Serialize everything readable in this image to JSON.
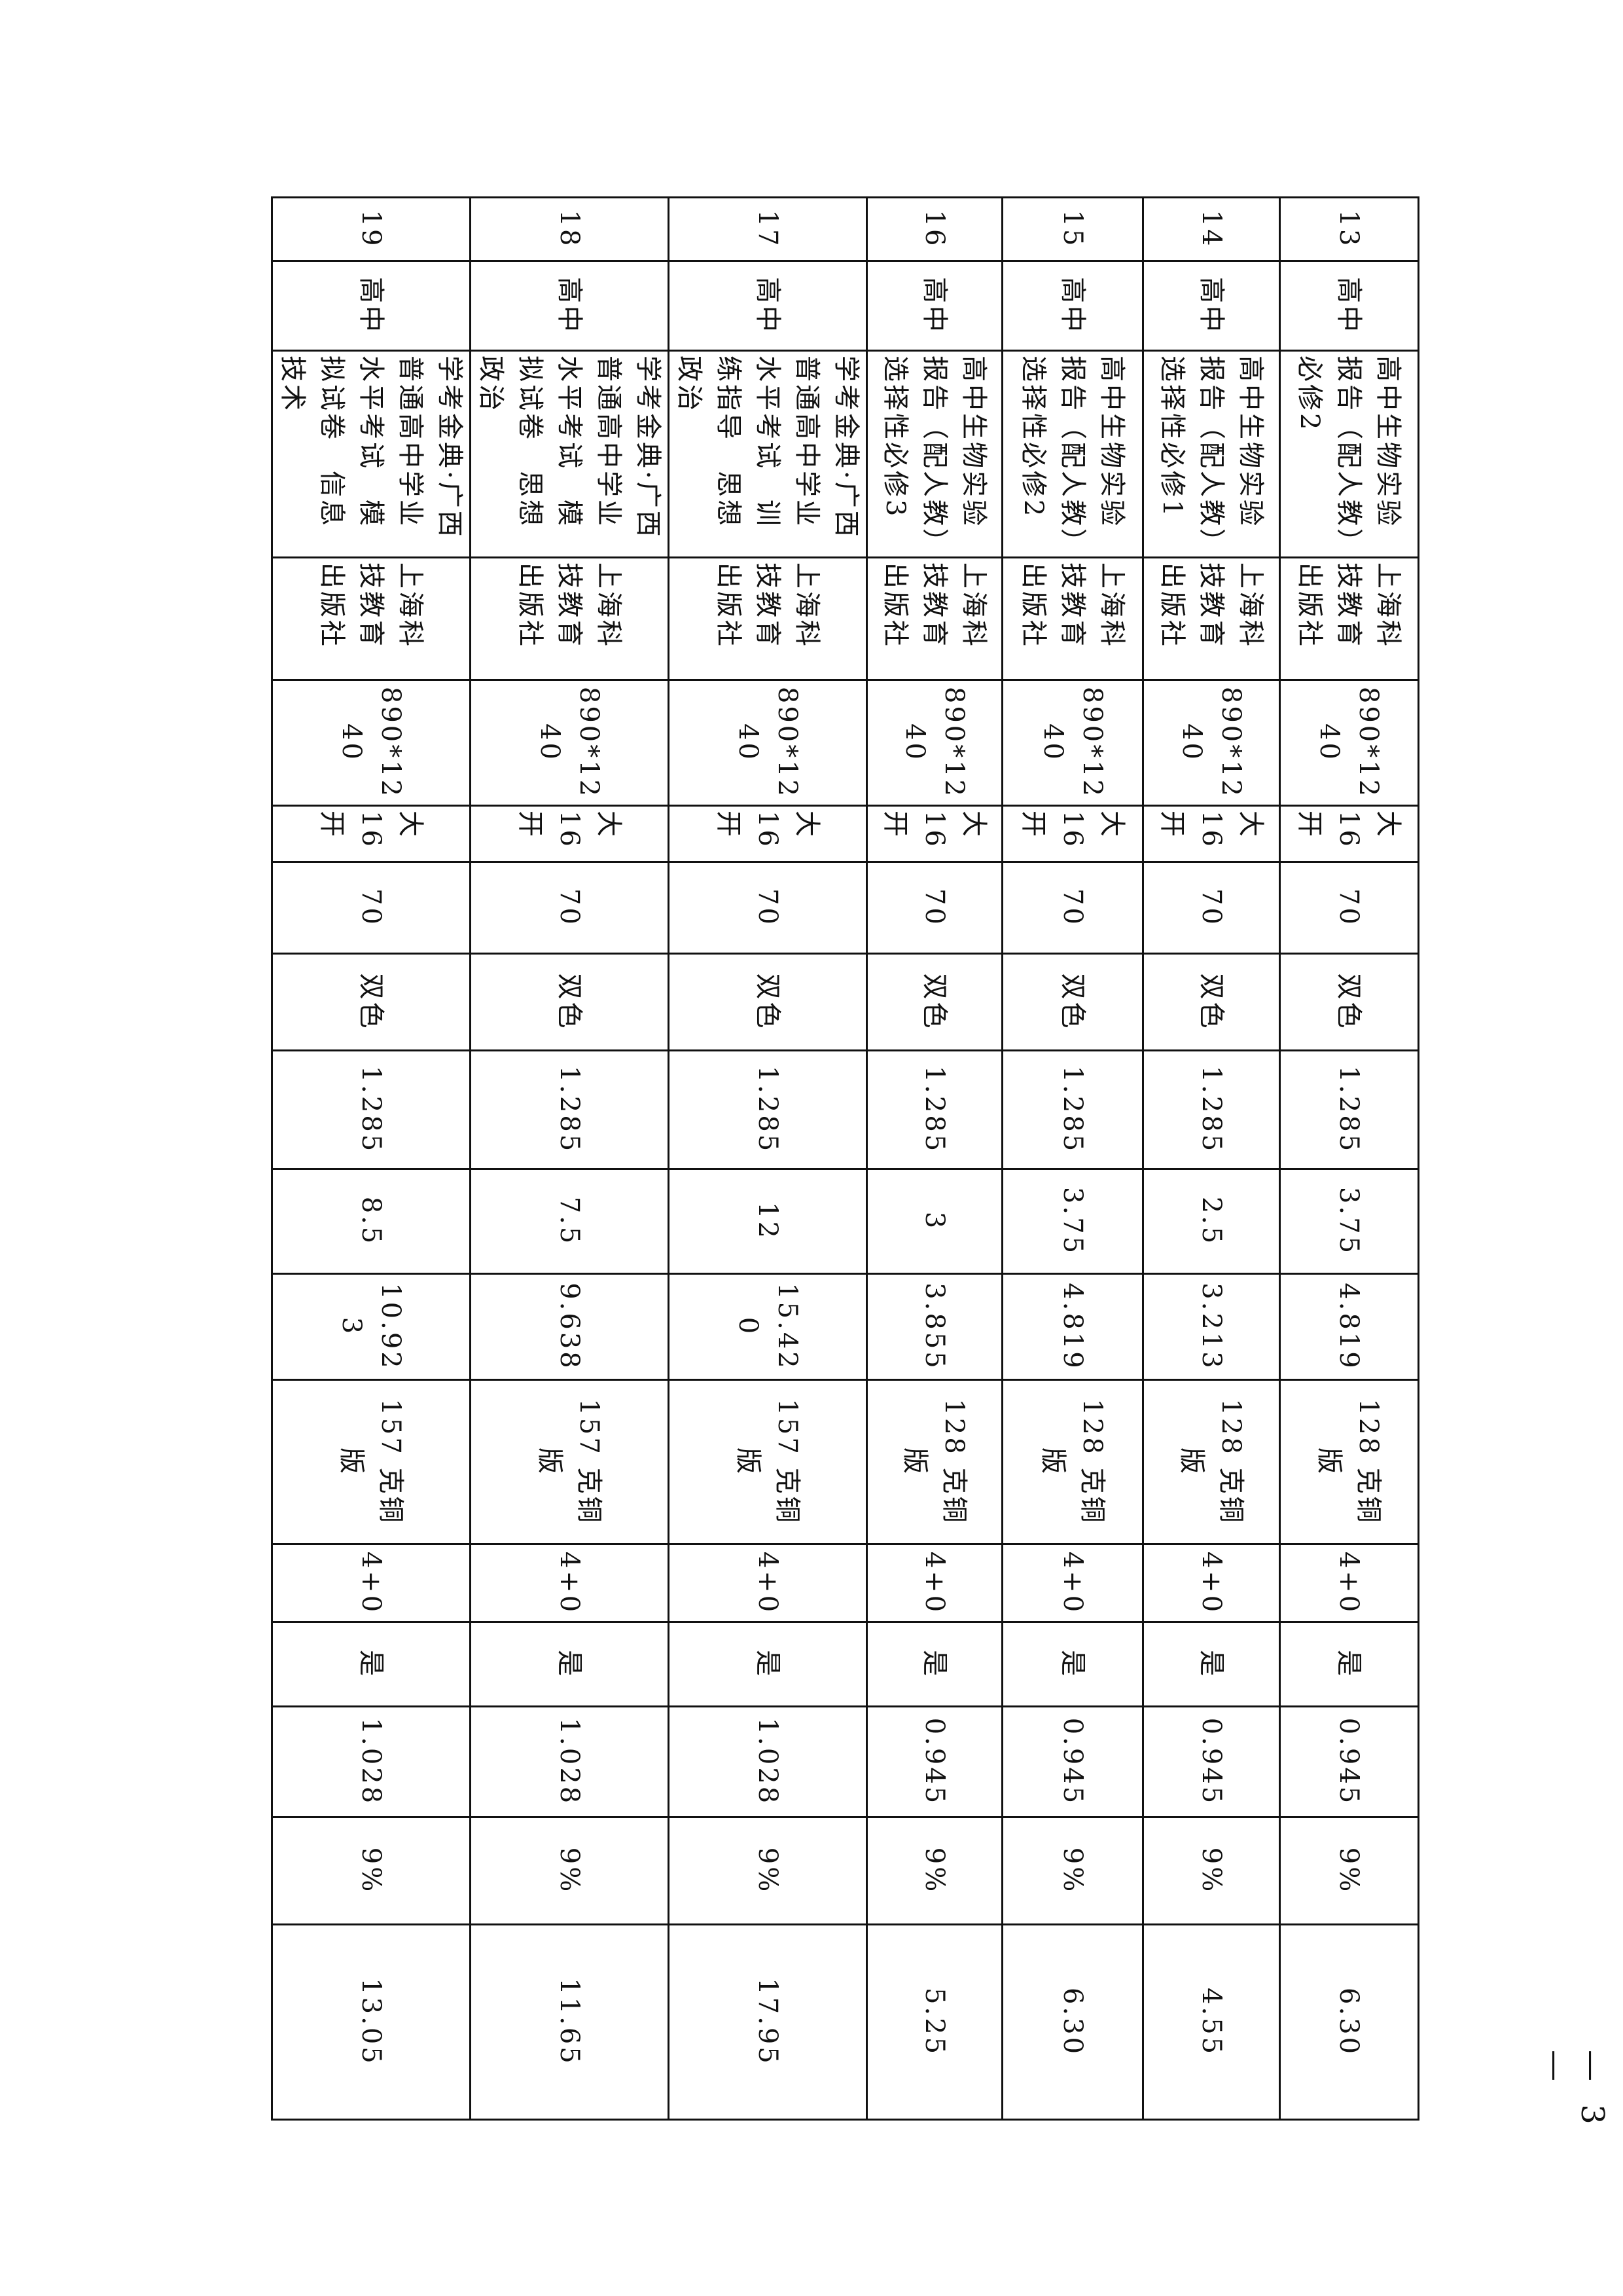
{
  "rows": [
    {
      "no": "13",
      "level": "高中",
      "title": "高中生物实验报告（配人教）必修2",
      "publisher": "上海科技教育出版社",
      "size": "890*1240",
      "format": "大16开",
      "a": "70",
      "color": "双色",
      "b": "1.285",
      "c": "3.75",
      "d": "4.819",
      "paper": "128 克铜版",
      "print": "4+0",
      "yes": "是",
      "e": "0.945",
      "rate": "9%",
      "price": "6.30"
    },
    {
      "no": "14",
      "level": "高中",
      "title": "高中生物实验报告（配人教）选择性必修1",
      "publisher": "上海科技教育出版社",
      "size": "890*1240",
      "format": "大16开",
      "a": "70",
      "color": "双色",
      "b": "1.285",
      "c": "2.5",
      "d": "3.213",
      "paper": "128 克铜版",
      "print": "4+0",
      "yes": "是",
      "e": "0.945",
      "rate": "9%",
      "price": "4.55"
    },
    {
      "no": "15",
      "level": "高中",
      "title": "高中生物实验报告（配人教）选择性必修2",
      "publisher": "上海科技教育出版社",
      "size": "890*1240",
      "format": "大16开",
      "a": "70",
      "color": "双色",
      "b": "1.285",
      "c": "3.75",
      "d": "4.819",
      "paper": "128 克铜版",
      "print": "4+0",
      "yes": "是",
      "e": "0.945",
      "rate": "9%",
      "price": "6.30"
    },
    {
      "no": "16",
      "level": "高中",
      "title": "高中生物实验报告（配人教）选择性必修3",
      "publisher": "上海科技教育出版社",
      "size": "890*1240",
      "format": "大16开",
      "a": "70",
      "color": "双色",
      "b": "1.285",
      "c": "3",
      "d": "3.855",
      "paper": "128 克铜版",
      "print": "4+0",
      "yes": "是",
      "e": "0.945",
      "rate": "9%",
      "price": "5.25"
    },
    {
      "no": "17",
      "level": "高中",
      "title": "学考金典·广西普通高中学业水平考试　训练指导　思想政治",
      "publisher": "上海科技教育出版社",
      "size": "890*1240",
      "format": "大16开",
      "a": "70",
      "color": "双色",
      "b": "1.285",
      "c": "12",
      "d": "15.420",
      "paper": "157 克铜版",
      "print": "4+0",
      "yes": "是",
      "e": "1.028",
      "rate": "9%",
      "price": "17.95"
    },
    {
      "no": "18",
      "level": "高中",
      "title": "学考金典·广西普通高中学业水平考试　模拟试卷　思想政治",
      "publisher": "上海科技教育出版社",
      "size": "890*1240",
      "format": "大16开",
      "a": "70",
      "color": "双色",
      "b": "1.285",
      "c": "7.5",
      "d": "9.638",
      "paper": "157 克铜版",
      "print": "4+0",
      "yes": "是",
      "e": "1.028",
      "rate": "9%",
      "price": "11.65"
    },
    {
      "no": "19",
      "level": "高中",
      "title": "学考金典·广西普通高中学业水平考试　模拟试卷　信息技术",
      "publisher": "上海科技教育出版社",
      "size": "890*1240",
      "format": "大16开",
      "a": "70",
      "color": "双色",
      "b": "1.285",
      "c": "8.5",
      "d": "10.923",
      "paper": "157 克铜版",
      "print": "4+0",
      "yes": "是",
      "e": "1.028",
      "rate": "9%",
      "price": "13.05"
    }
  ],
  "page_number": "— 3 —"
}
